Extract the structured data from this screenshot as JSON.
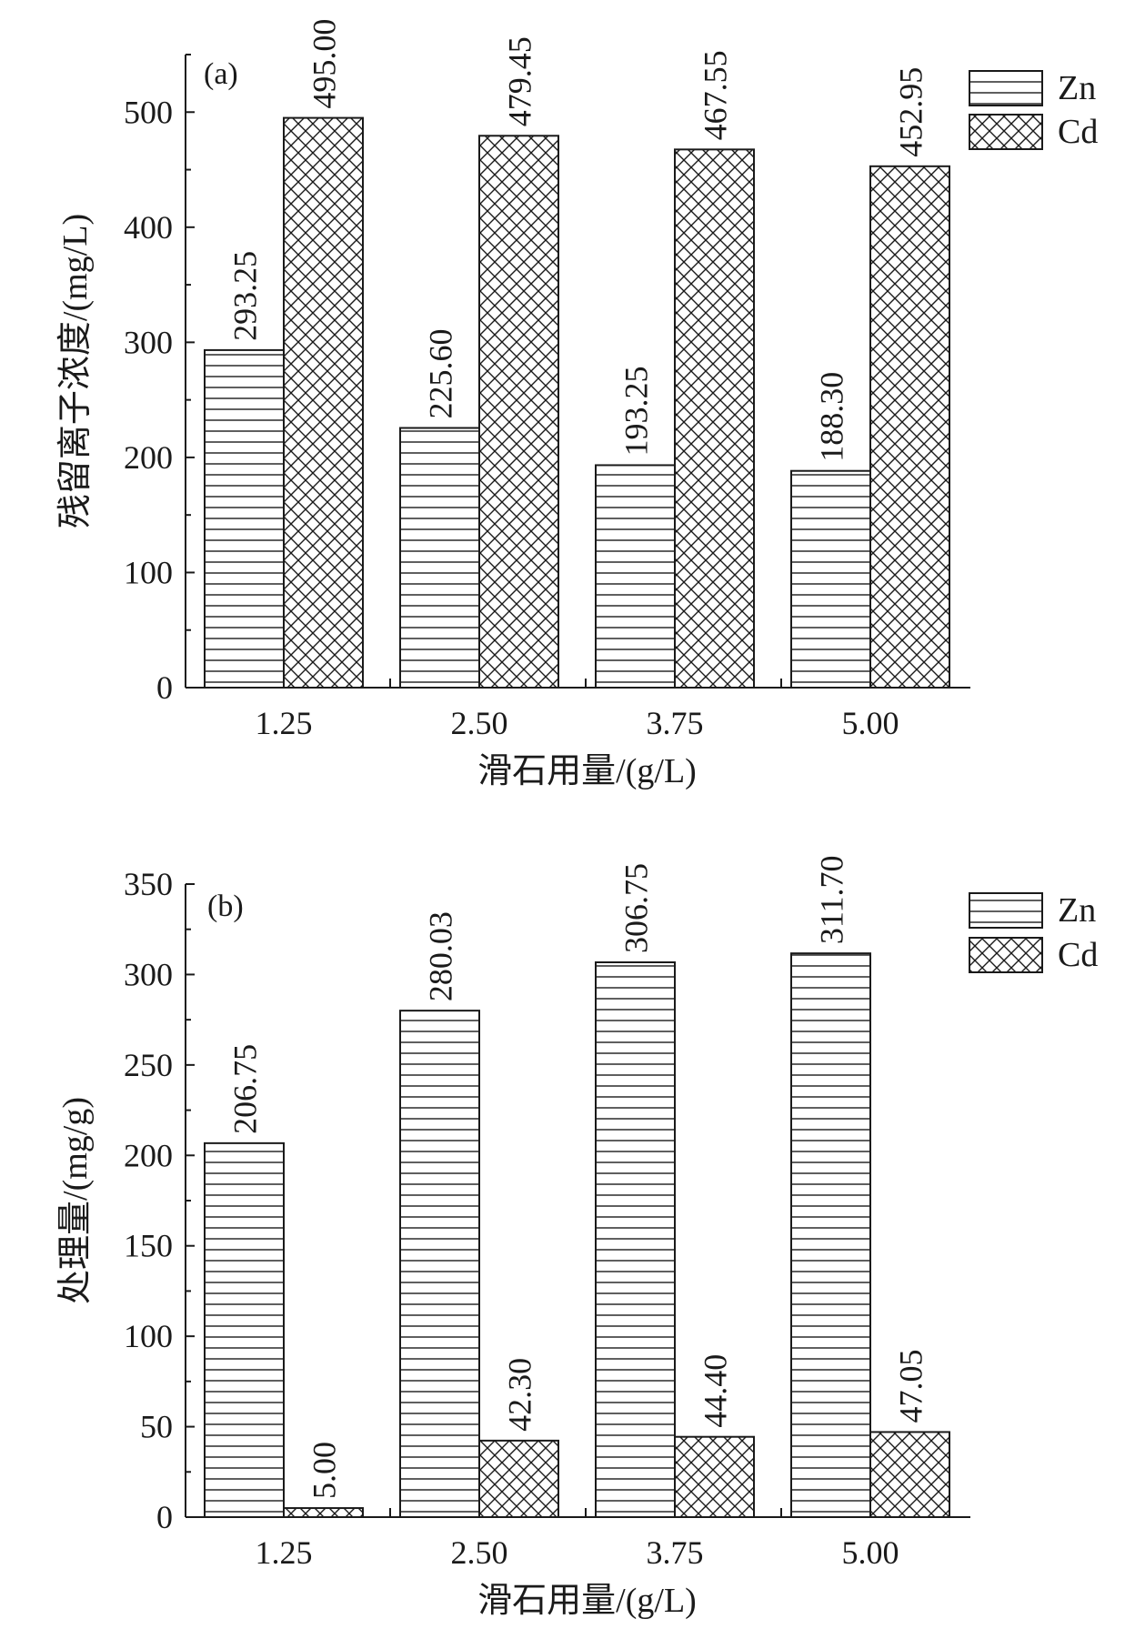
{
  "chart_data": [
    {
      "type": "bar",
      "panel_label": "(a)",
      "categories": [
        "1.25",
        "2.50",
        "3.75",
        "5.00"
      ],
      "series": [
        {
          "name": "Zn",
          "values": [
            293.25,
            225.6,
            193.25,
            188.3
          ],
          "labels": [
            "293.25",
            "225.60",
            "193.25",
            "188.30"
          ],
          "pattern": "horizontal-lines"
        },
        {
          "name": "Cd",
          "values": [
            495.0,
            479.45,
            467.55,
            452.95
          ],
          "labels": [
            "495.00",
            "479.45",
            "467.55",
            "452.95"
          ],
          "pattern": "crosshatch"
        }
      ],
      "xlabel": "滑石用量/(g/L)",
      "ylabel": "残留离子浓度/(mg/L)",
      "ylim": [
        0,
        550
      ],
      "yticks": [
        "0",
        "100",
        "200",
        "300",
        "400",
        "500"
      ],
      "ytick_values": [
        0,
        100,
        200,
        300,
        400,
        500
      ],
      "legend_position": "top-right",
      "grid": false
    },
    {
      "type": "bar",
      "panel_label": "(b)",
      "categories": [
        "1.25",
        "2.50",
        "3.75",
        "5.00"
      ],
      "series": [
        {
          "name": "Zn",
          "values": [
            206.75,
            280.03,
            306.75,
            311.7
          ],
          "labels": [
            "206.75",
            "280.03",
            "306.75",
            "311.70"
          ],
          "pattern": "horizontal-lines"
        },
        {
          "name": "Cd",
          "values": [
            5.0,
            42.3,
            44.4,
            47.05
          ],
          "labels": [
            "5.00",
            "42.30",
            "44.40",
            "47.05"
          ],
          "pattern": "crosshatch"
        }
      ],
      "xlabel": "滑石用量/(g/L)",
      "ylabel": "处理量/(mg/g)",
      "ylim": [
        0,
        350
      ],
      "yticks": [
        "0",
        "50",
        "100",
        "150",
        "200",
        "250",
        "300",
        "350"
      ],
      "ytick_values": [
        0,
        50,
        100,
        150,
        200,
        250,
        300,
        350
      ],
      "legend_position": "top-right",
      "grid": false
    }
  ]
}
